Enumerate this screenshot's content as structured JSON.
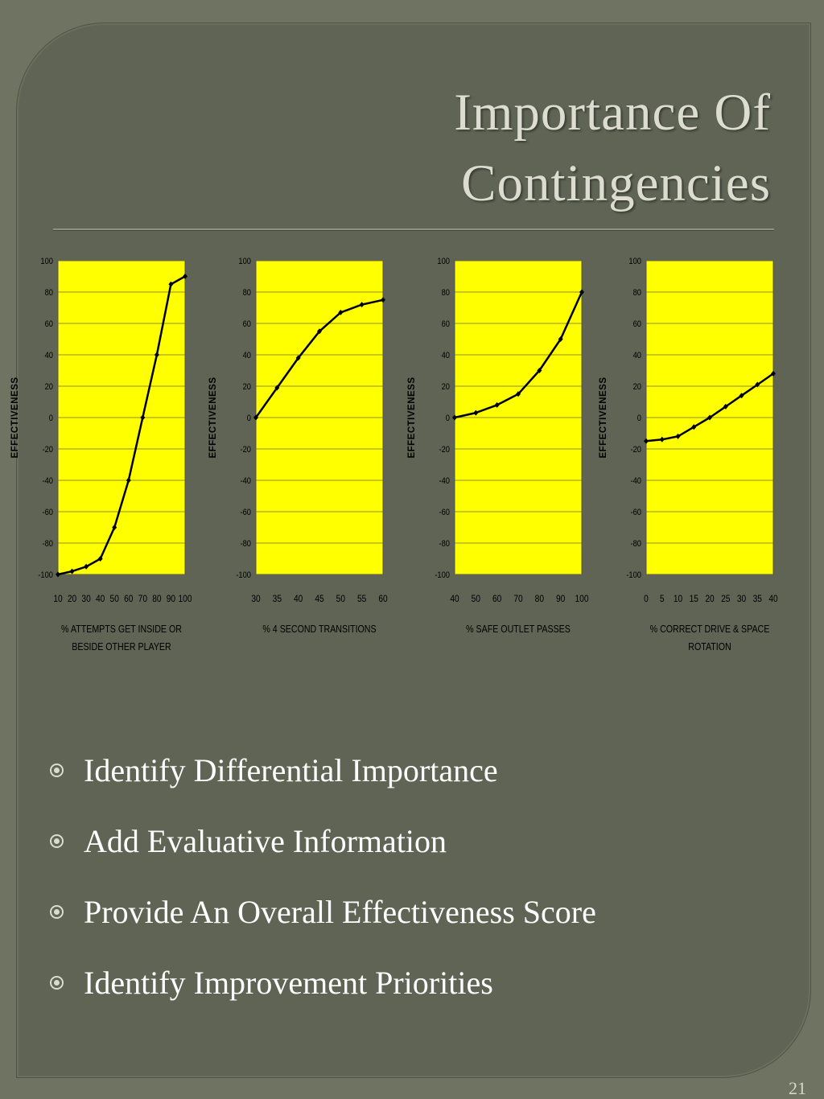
{
  "slide": {
    "title_line1": "Importance Of",
    "title_line2": "Contingencies",
    "bullets": [
      "Identify Differential Importance",
      "Add Evaluative Information",
      "Provide An Overall Effectiveness Score",
      "Identify Improvement Priorities"
    ],
    "page_number": "21"
  },
  "colors": {
    "plot_fill": "#ffff00",
    "line": "#000000",
    "panel": "#5f6454"
  },
  "chart_data": [
    {
      "type": "line",
      "ylabel": "EFFECTIVENESS",
      "xlabel_lines": [
        "% ATTEMPTS GET INSIDE OR",
        "BESIDE OTHER PLAYER"
      ],
      "ylim": [
        -100,
        100
      ],
      "yticks": [
        "100",
        "80",
        "60",
        "40",
        "20",
        "0",
        "-20",
        "-40",
        "-60",
        "-80",
        "-100"
      ],
      "xticks": [
        "10",
        "20",
        "30",
        "40",
        "50",
        "60",
        "70",
        "80",
        "90",
        "100"
      ],
      "xlim": [
        10,
        100
      ],
      "grid": true,
      "x": [
        10,
        20,
        30,
        40,
        50,
        60,
        70,
        80,
        90,
        100
      ],
      "y": [
        -100,
        -98,
        -95,
        -90,
        -70,
        -40,
        0,
        40,
        85,
        90
      ]
    },
    {
      "type": "line",
      "ylabel": "EFFECTIVENESS",
      "xlabel_lines": [
        "% 4 SECOND TRANSITIONS"
      ],
      "ylim": [
        -100,
        100
      ],
      "yticks": [
        "100",
        "80",
        "60",
        "40",
        "20",
        "0",
        "-20",
        "-40",
        "-60",
        "-80",
        "-100"
      ],
      "xticks": [
        "30",
        "35",
        "40",
        "45",
        "50",
        "55",
        "60"
      ],
      "xlim": [
        30,
        60
      ],
      "grid": true,
      "x": [
        30,
        35,
        40,
        45,
        50,
        55,
        60
      ],
      "y": [
        0,
        19,
        38,
        55,
        67,
        72,
        75
      ]
    },
    {
      "type": "line",
      "ylabel": "EFFECTIVENESS",
      "xlabel_lines": [
        "% SAFE OUTLET PASSES"
      ],
      "ylim": [
        -100,
        100
      ],
      "yticks": [
        "100",
        "80",
        "60",
        "40",
        "20",
        "0",
        "-20",
        "-40",
        "-60",
        "-80",
        "-100"
      ],
      "xticks": [
        "40",
        "50",
        "60",
        "70",
        "80",
        "90",
        "100"
      ],
      "xlim": [
        40,
        100
      ],
      "grid": true,
      "x": [
        40,
        50,
        60,
        70,
        80,
        90,
        100
      ],
      "y": [
        0,
        3,
        8,
        15,
        30,
        50,
        80
      ]
    },
    {
      "type": "line",
      "ylabel": "EFFECTIVENESS",
      "xlabel_lines": [
        "% CORRECT DRIVE & SPACE",
        "ROTATION"
      ],
      "ylim": [
        -100,
        100
      ],
      "yticks": [
        "100",
        "80",
        "60",
        "40",
        "20",
        "0",
        "-20",
        "-40",
        "-60",
        "-80",
        "-100"
      ],
      "xticks": [
        "0",
        "5",
        "10",
        "15",
        "20",
        "25",
        "30",
        "35",
        "40"
      ],
      "xlim": [
        0,
        40
      ],
      "grid": true,
      "x": [
        0,
        5,
        10,
        15,
        20,
        25,
        30,
        35,
        40
      ],
      "y": [
        -15,
        -14,
        -12,
        -6,
        0,
        7,
        14,
        21,
        28
      ]
    }
  ]
}
